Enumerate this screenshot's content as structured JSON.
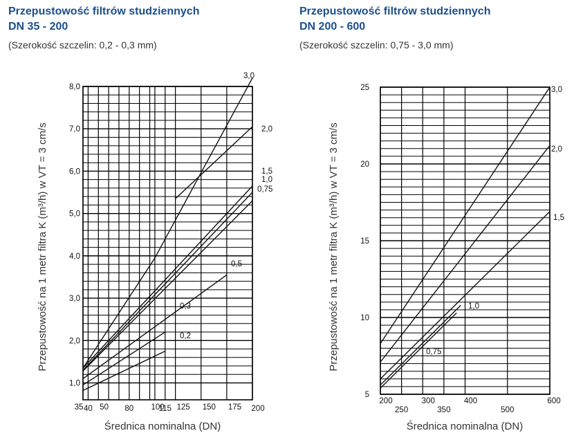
{
  "chart_data": [
    {
      "type": "line",
      "title": "Przepustowość filtrów studziennych",
      "subtitle": "DN 35 - 200",
      "note": "(Szerokość szczelin: 0,2 - 0,3 mm)",
      "xlabel": "Średnica nominalna (DN)",
      "ylabel": "Przepustowość na 1 metr filtra K (m³/h) w VT = 3 cm/s",
      "xlim": [
        35,
        200
      ],
      "ylim": [
        0.6,
        8.0
      ],
      "grid": true,
      "x_ticks_upper": [
        "35",
        "50",
        "100",
        "125",
        "150",
        "175"
      ],
      "x_ticks_lower": [
        "40",
        "80",
        "115",
        "200"
      ],
      "y_ticks": [
        "8,0",
        "7,0",
        "6,0",
        "5,0",
        "4,0",
        "3,0",
        "2,0",
        "1,0"
      ],
      "series": [
        {
          "name": "3,0",
          "x": [
            35,
            105,
            200
          ],
          "y": [
            1.35,
            3.95,
            8.2
          ]
        },
        {
          "name": "2,0",
          "x": [
            125,
            200
          ],
          "y": [
            5.35,
            7.05
          ]
        },
        {
          "name": "1,5",
          "x": [
            35,
            200
          ],
          "y": [
            1.35,
            5.65
          ]
        },
        {
          "name": "1,0",
          "x": [
            35,
            200
          ],
          "y": [
            1.3,
            5.5
          ]
        },
        {
          "name": "0,75",
          "x": [
            35,
            200
          ],
          "y": [
            1.28,
            5.3
          ]
        },
        {
          "name": "0,5",
          "x": [
            35,
            175
          ],
          "y": [
            1.1,
            3.55
          ]
        },
        {
          "name": "0,3",
          "x": [
            35,
            115
          ],
          "y": [
            0.95,
            2.2
          ]
        },
        {
          "name": "0,2",
          "x": [
            35,
            115
          ],
          "y": [
            0.82,
            1.75
          ]
        }
      ]
    },
    {
      "type": "line",
      "title": "Przepustowość filtrów studziennych",
      "subtitle": "DN 200 - 600",
      "note": "(Szerokość szczelin: 0,75 - 3,0 mm)",
      "xlabel": "Średnica nominalna (DN)",
      "ylabel": "Przepustowość na 1 metr filtra K (m³/h) w VT = 3 cm/s",
      "xlim": [
        200,
        600
      ],
      "ylim": [
        5,
        25
      ],
      "grid": true,
      "x_ticks_upper": [
        "200",
        "300",
        "400",
        "600"
      ],
      "x_ticks_lower": [
        "250",
        "350",
        "500"
      ],
      "y_ticks": [
        "25",
        "20",
        "15",
        "10",
        "5"
      ],
      "series": [
        {
          "name": "3,0",
          "x": [
            200,
            600
          ],
          "y": [
            8.3,
            25.0
          ]
        },
        {
          "name": "2,0",
          "x": [
            200,
            600
          ],
          "y": [
            7.1,
            21.2
          ]
        },
        {
          "name": "1,5",
          "x": [
            200,
            600
          ],
          "y": [
            6.0,
            16.9
          ]
        },
        {
          "name": "1,0",
          "x": [
            200,
            390
          ],
          "y": [
            5.6,
            10.8
          ]
        },
        {
          "name": "0,75",
          "x": [
            200,
            380
          ],
          "y": [
            5.4,
            10.3
          ]
        }
      ]
    }
  ]
}
